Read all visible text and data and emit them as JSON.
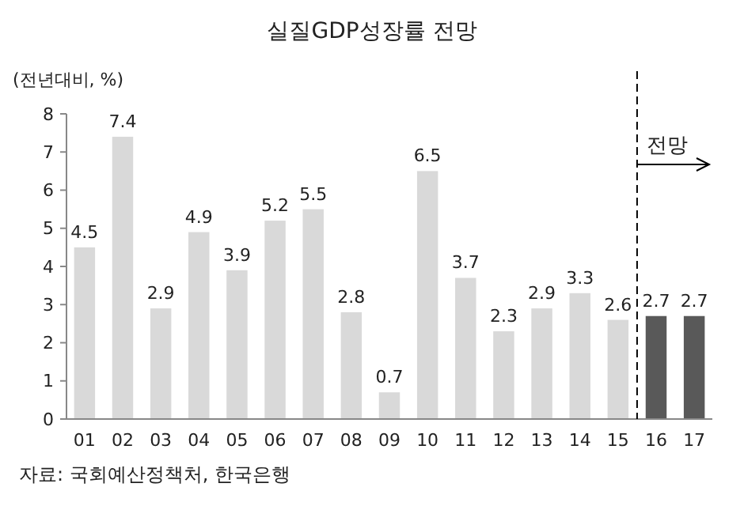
{
  "chart_data": {
    "type": "bar",
    "title": "실질GDP성장률 전망",
    "ylabel": "(전년대비, %)",
    "categories": [
      "01",
      "02",
      "03",
      "04",
      "05",
      "06",
      "07",
      "08",
      "09",
      "10",
      "11",
      "12",
      "13",
      "14",
      "15",
      "16",
      "17"
    ],
    "values": [
      4.5,
      7.4,
      2.9,
      4.9,
      3.9,
      5.2,
      5.5,
      2.8,
      0.7,
      6.5,
      3.7,
      2.3,
      2.9,
      3.3,
      2.6,
      2.7,
      2.7
    ],
    "colors": [
      "#d9d9d9",
      "#d9d9d9",
      "#d9d9d9",
      "#d9d9d9",
      "#d9d9d9",
      "#d9d9d9",
      "#d9d9d9",
      "#d9d9d9",
      "#d9d9d9",
      "#d9d9d9",
      "#d9d9d9",
      "#d9d9d9",
      "#d9d9d9",
      "#d9d9d9",
      "#d9d9d9",
      "#595959",
      "#595959"
    ],
    "ylim": [
      0,
      8
    ],
    "yticks": [
      0,
      1,
      2,
      3,
      4,
      5,
      6,
      7,
      8
    ],
    "data_labels": true,
    "annotations": [
      "전망",
      "자료: 국회예산정책처, 한국은행"
    ]
  }
}
